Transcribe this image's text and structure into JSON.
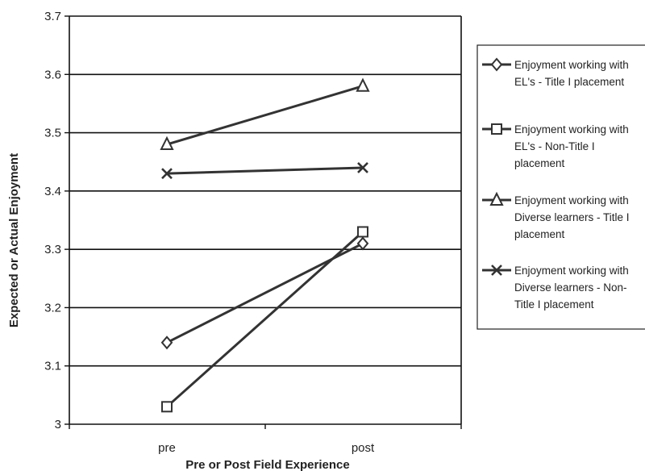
{
  "chart_data": {
    "type": "line",
    "categories": [
      "pre",
      "post"
    ],
    "xlabel": "Pre or Post Field Experience",
    "ylabel": "Expected or Actual Enjoyment",
    "ylim": [
      3,
      3.7
    ],
    "yticks": [
      "3",
      "3.1",
      "3.2",
      "3.3",
      "3.4",
      "3.5",
      "3.6",
      "3.7"
    ],
    "grid": true,
    "legend_position": "right",
    "series": [
      {
        "name_lines": [
          "Enjoyment working with",
          "EL's -  Title I placement"
        ],
        "marker": "diamond",
        "values": [
          3.14,
          3.31
        ]
      },
      {
        "name_lines": [
          "Enjoyment working with",
          "EL's -  Non-Title I",
          "placement"
        ],
        "marker": "square",
        "values": [
          3.03,
          3.33
        ]
      },
      {
        "name_lines": [
          "Enjoyment working with",
          "Diverse learners - Title I",
          "placement"
        ],
        "marker": "triangle",
        "values": [
          3.48,
          3.58
        ]
      },
      {
        "name_lines": [
          "Enjoyment working with",
          "Diverse learners - Non-",
          "Title I placement"
        ],
        "marker": "x",
        "values": [
          3.43,
          3.44
        ]
      }
    ],
    "colors": {
      "line": "#333333",
      "grid": "#111111"
    }
  }
}
